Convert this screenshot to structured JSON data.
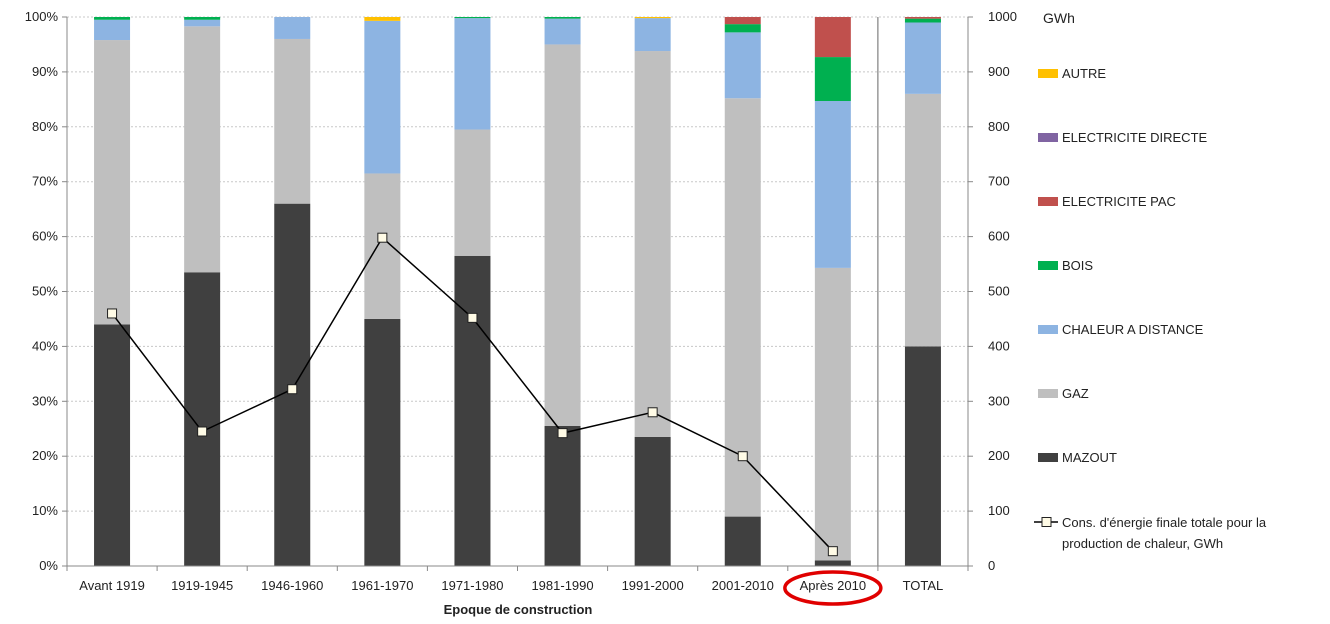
{
  "chart_data": {
    "type": "bar",
    "stacked": true,
    "percent_stacked": true,
    "xlabel": "Epoque de construction",
    "right_axis_unit": "GWh",
    "categories": [
      "Avant 1919",
      "1919-1945",
      "1946-1960",
      "1961-1970",
      "1971-1980",
      "1981-1990",
      "1991-2000",
      "2001-2010",
      "Après 2010",
      "TOTAL"
    ],
    "left_axis": {
      "min": 0,
      "max": 100,
      "step": 10,
      "format": "percent",
      "tick_labels": [
        "0%",
        "10%",
        "20%",
        "30%",
        "40%",
        "50%",
        "60%",
        "70%",
        "80%",
        "90%",
        "100%"
      ]
    },
    "right_axis": {
      "min": 0,
      "max": 1000,
      "step": 100,
      "tick_labels": [
        "0",
        "100",
        "200",
        "300",
        "400",
        "500",
        "600",
        "700",
        "800",
        "900",
        "1000"
      ]
    },
    "grid": "horizontal-dotted",
    "legend_position": "right",
    "series": [
      {
        "name": "MAZOUT",
        "color": "#404040",
        "values": [
          44,
          53.5,
          66,
          45,
          56.5,
          25.5,
          23.5,
          9,
          1,
          40
        ]
      },
      {
        "name": "GAZ",
        "color": "#bfbfbf",
        "values": [
          51.8,
          44.8,
          30,
          26.5,
          23,
          69.5,
          70.3,
          76.2,
          53.3,
          46
        ]
      },
      {
        "name": "CHALEUR A DISTANCE",
        "color": "#8db4e2",
        "values": [
          3.7,
          1.2,
          4,
          27.8,
          20.3,
          4.7,
          6,
          12,
          30.4,
          13
        ]
      },
      {
        "name": "BOIS",
        "color": "#00b050",
        "values": [
          0.5,
          0.5,
          0,
          0,
          0.2,
          0.3,
          0,
          1.5,
          8,
          0.7
        ]
      },
      {
        "name": "ELECTRICITE PAC",
        "color": "#c0504d",
        "values": [
          0,
          0,
          0,
          0,
          0,
          0,
          0,
          1.3,
          7.3,
          0.3
        ]
      },
      {
        "name": "ELECTRICITE DIRECTE",
        "color": "#8064a2",
        "values": [
          0,
          0,
          0,
          0,
          0,
          0,
          0,
          0,
          0,
          0
        ]
      },
      {
        "name": "AUTRE",
        "color": "#ffc000",
        "values": [
          0,
          0,
          0,
          0.7,
          0,
          0,
          0.2,
          0,
          0,
          0
        ]
      }
    ],
    "line_series": {
      "name": "Cons. d'énergie finale totale  pour la production de chaleur, GWh",
      "name_lines": [
        "Cons. d'énergie finale totale  pour la",
        "production de chaleur, GWh"
      ],
      "axis": "right",
      "color": "#000000",
      "values": [
        460,
        245,
        322,
        598,
        452,
        242,
        280,
        200,
        27,
        null
      ]
    },
    "legend_order": [
      "AUTRE",
      "ELECTRICITE DIRECTE",
      "ELECTRICITE PAC",
      "BOIS",
      "CHALEUR A DISTANCE",
      "GAZ",
      "MAZOUT"
    ],
    "highlight": {
      "category": "Après 2010",
      "shape": "ellipse",
      "color": "#e00000"
    }
  }
}
